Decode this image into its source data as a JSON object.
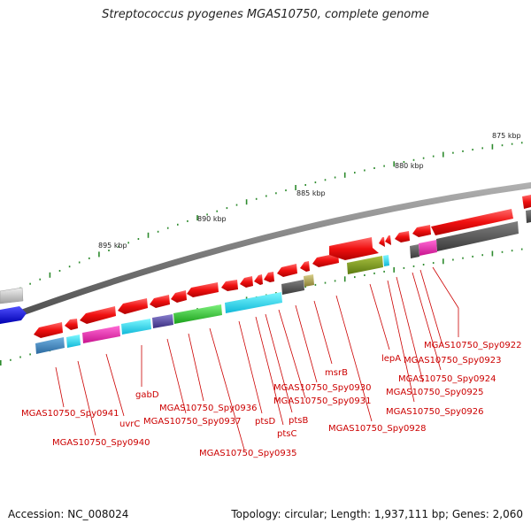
{
  "title": "Streptococcus pyogenes MGAS10750, complete genome",
  "footer": {
    "accession": "Accession: NC_008024",
    "summary": "Topology: circular; Length: 1,937,111 bp; Genes: 2,060"
  },
  "scale_labels": [
    "875 kbp",
    "880 kbp",
    "885 kbp",
    "890 kbp",
    "895 kbp"
  ],
  "gene_labels": [
    "MGAS10750_Spy0922",
    "MGAS10750_Spy0923",
    "MGAS10750_Spy0924",
    "MGAS10750_Spy0925",
    "MGAS10750_Spy0926",
    "lepA",
    "MGAS10750_Spy0928",
    "msrB",
    "MGAS10750_Spy0930",
    "MGAS10750_Spy0931",
    "ptsB",
    "ptsC",
    "ptsD",
    "MGAS10750_Spy0935",
    "MGAS10750_Spy0936",
    "MGAS10750_Spy0937",
    "gabD",
    "uvrC",
    "MGAS10750_Spy0940",
    "MGAS10750_Spy0941"
  ],
  "colors": {
    "backbone": "#8a8a8a",
    "gene": "#ee1111",
    "label": "#cc0000",
    "tick": "#2e8b2e"
  }
}
